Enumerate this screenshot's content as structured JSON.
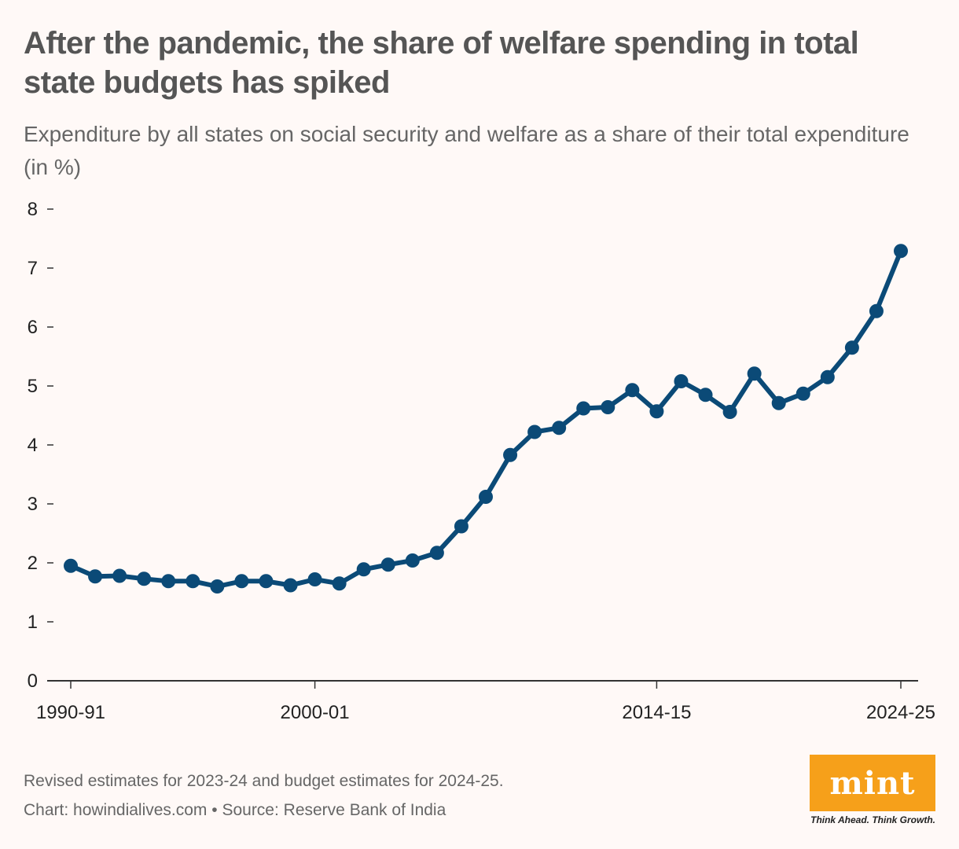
{
  "header": {
    "title": "After the pandemic, the share of welfare spending in total state budgets has spiked",
    "subtitle": "Expenditure by all states on social security and welfare as a share of their total expenditure (in %)"
  },
  "footer": {
    "note": "Revised estimates for 2023-24 and budget estimates for 2024-25.",
    "credit": "Chart: howindialives.com • Source: Reserve Bank of India"
  },
  "logo": {
    "text": "mint",
    "tagline": "Think Ahead. Think Growth.",
    "color": "#f6a01a"
  },
  "chart_data": {
    "type": "line",
    "title": "After the pandemic, the share of welfare spending in total state budgets has spiked",
    "subtitle": "Expenditure by all states on social security and welfare as a share of their total expenditure (in %)",
    "xlabel": "",
    "ylabel": "",
    "x": [
      "1990-91",
      "1991-92",
      "1992-93",
      "1993-94",
      "1994-95",
      "1995-96",
      "1996-97",
      "1997-98",
      "1998-99",
      "1999-00",
      "2000-01",
      "2001-02",
      "2002-03",
      "2003-04",
      "2004-05",
      "2005-06",
      "2006-07",
      "2007-08",
      "2008-09",
      "2009-10",
      "2010-11",
      "2011-12",
      "2012-13",
      "2013-14",
      "2014-15",
      "2015-16",
      "2016-17",
      "2017-18",
      "2018-19",
      "2019-20",
      "2020-21",
      "2021-22",
      "2022-23",
      "2023-24",
      "2024-25"
    ],
    "x_tick_labels": [
      "1990-91",
      "2000-01",
      "2014-15",
      "2024-25"
    ],
    "values": [
      1.95,
      1.77,
      1.78,
      1.73,
      1.69,
      1.69,
      1.6,
      1.69,
      1.69,
      1.62,
      1.72,
      1.65,
      1.89,
      1.97,
      2.04,
      2.17,
      2.62,
      3.12,
      3.83,
      4.22,
      4.29,
      4.62,
      4.64,
      4.93,
      4.57,
      5.08,
      4.85,
      4.56,
      5.21,
      4.71,
      4.87,
      5.15,
      5.65,
      6.27,
      7.29
    ],
    "y_ticks": [
      0,
      1,
      2,
      3,
      4,
      5,
      6,
      7,
      8
    ],
    "ylim": [
      0,
      8
    ],
    "grid": false,
    "line_color": "#0b4a77"
  }
}
